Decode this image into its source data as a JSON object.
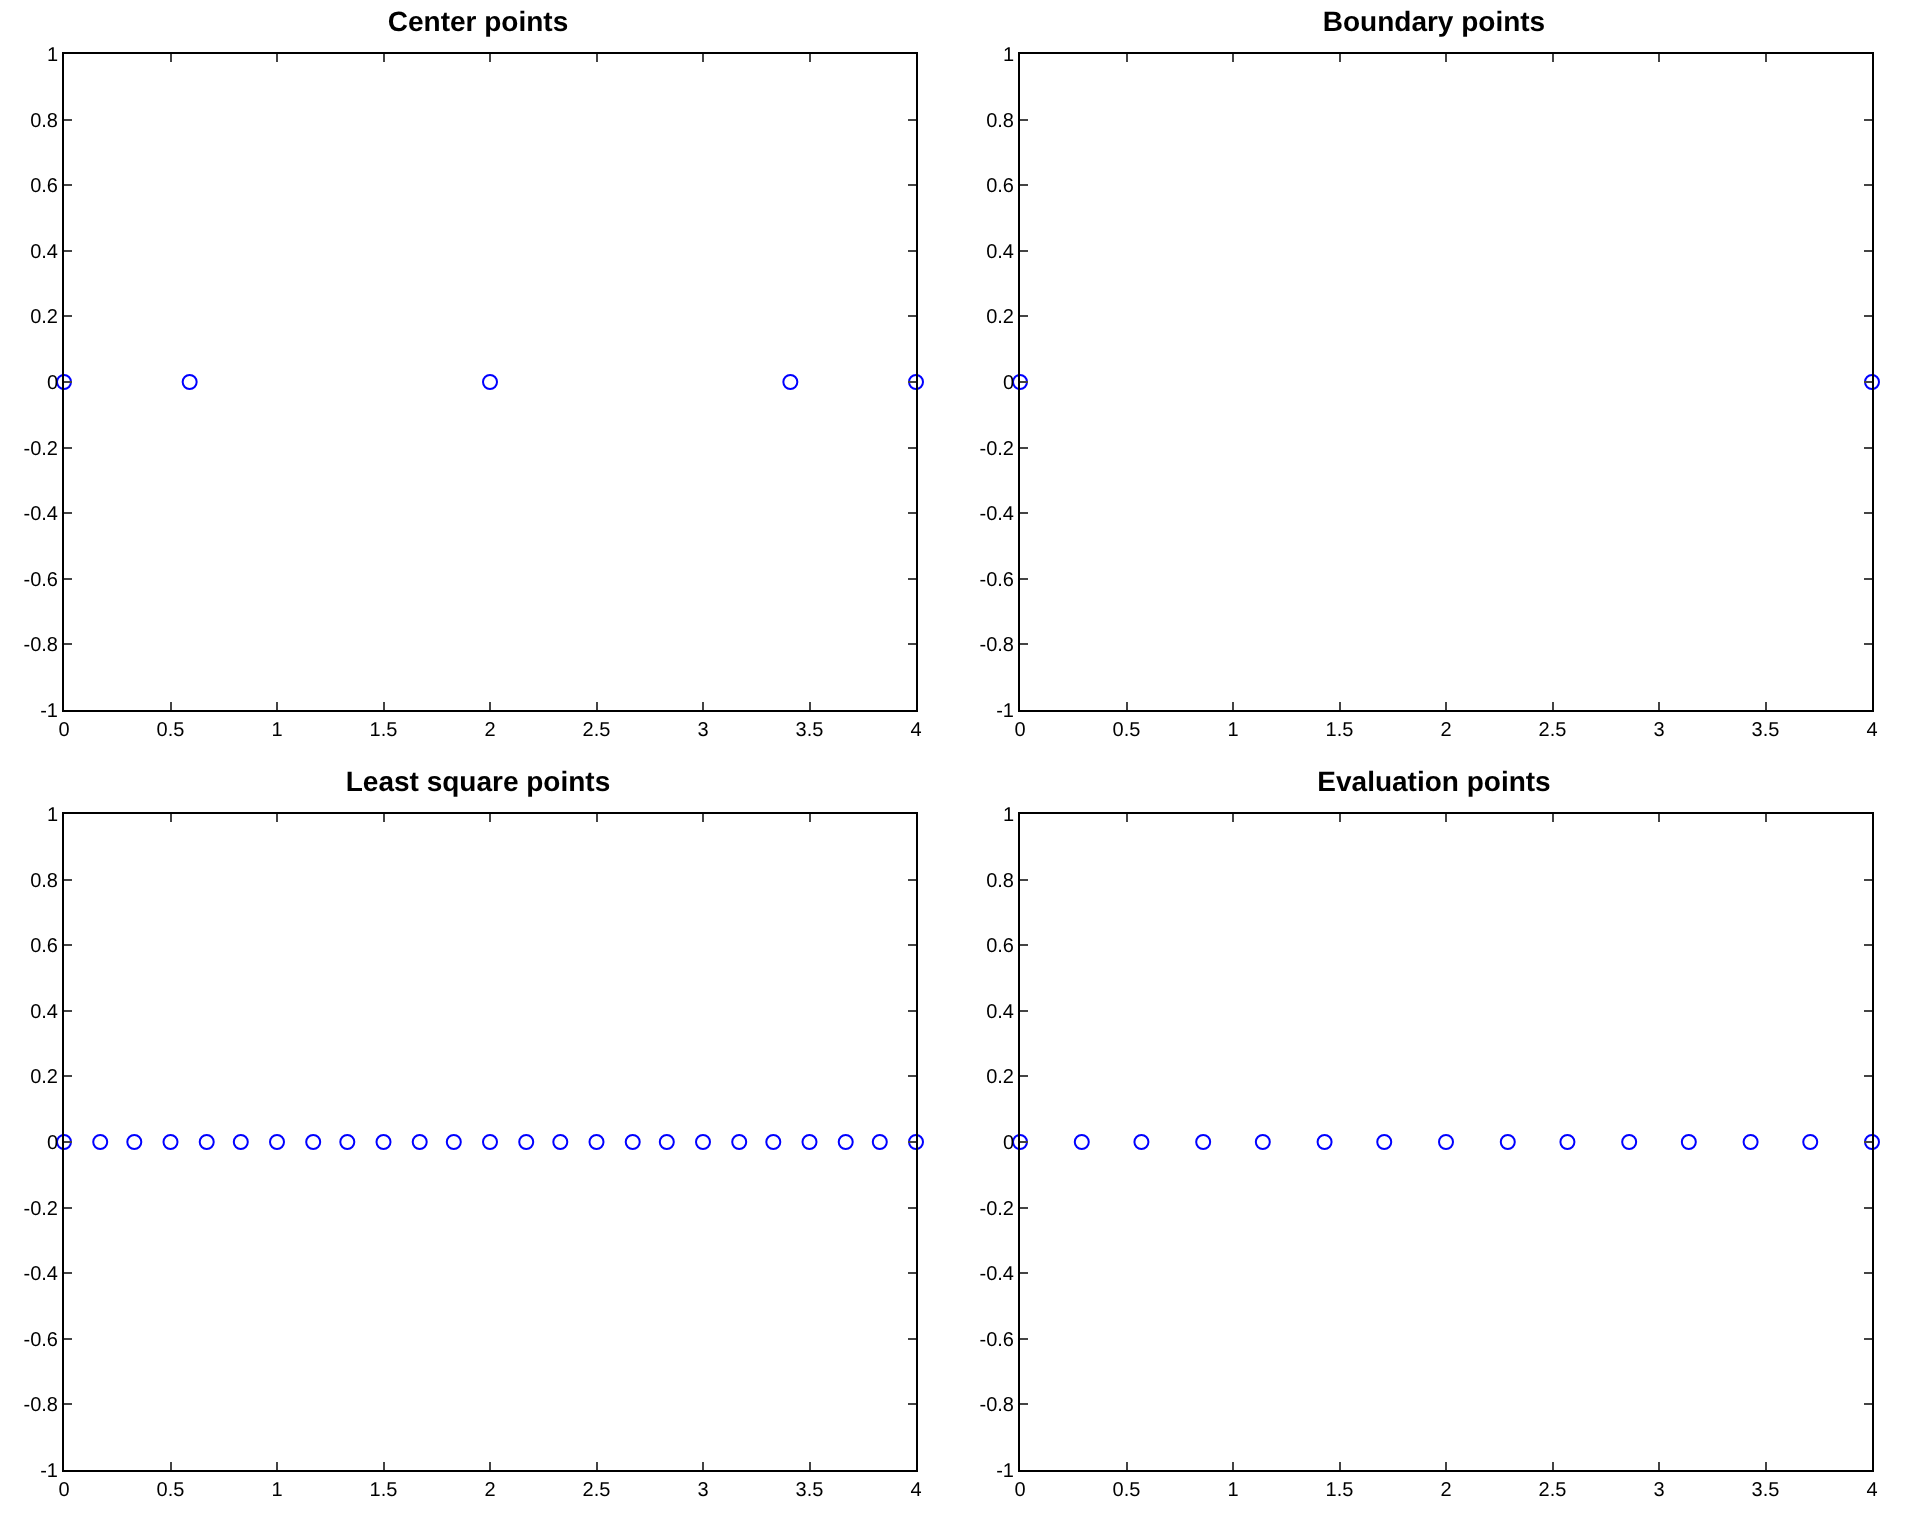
{
  "chart_data": [
    {
      "type": "scatter",
      "title": "Center points",
      "x": [
        0,
        0.59,
        2,
        3.41,
        4
      ],
      "values": [
        0,
        0,
        0,
        0,
        0
      ],
      "color": "#0000ff",
      "marker": "circle",
      "xlim": [
        0,
        4
      ],
      "ylim": [
        -1,
        1
      ],
      "xticks": [
        0,
        0.5,
        1,
        1.5,
        2,
        2.5,
        3,
        3.5,
        4
      ],
      "yticks": [
        -1,
        -0.8,
        -0.6,
        -0.4,
        -0.2,
        0,
        0.2,
        0.4,
        0.6,
        0.8,
        1
      ]
    },
    {
      "type": "scatter",
      "title": "Boundary points",
      "x": [
        0,
        4
      ],
      "values": [
        0,
        0
      ],
      "color": "#0000ff",
      "marker": "circle",
      "xlim": [
        0,
        4
      ],
      "ylim": [
        -1,
        1
      ],
      "xticks": [
        0,
        0.5,
        1,
        1.5,
        2,
        2.5,
        3,
        3.5,
        4
      ],
      "yticks": [
        -1,
        -0.8,
        -0.6,
        -0.4,
        -0.2,
        0,
        0.2,
        0.4,
        0.6,
        0.8,
        1
      ]
    },
    {
      "type": "scatter",
      "title": "Least square points",
      "x": [
        0,
        0.17,
        0.33,
        0.5,
        0.67,
        0.83,
        1,
        1.17,
        1.33,
        1.5,
        1.67,
        1.83,
        2,
        2.17,
        2.33,
        2.5,
        2.67,
        2.83,
        3,
        3.17,
        3.33,
        3.5,
        3.67,
        3.83,
        4
      ],
      "values": [
        0,
        0,
        0,
        0,
        0,
        0,
        0,
        0,
        0,
        0,
        0,
        0,
        0,
        0,
        0,
        0,
        0,
        0,
        0,
        0,
        0,
        0,
        0,
        0,
        0
      ],
      "color": "#0000ff",
      "marker": "circle",
      "xlim": [
        0,
        4
      ],
      "ylim": [
        -1,
        1
      ],
      "xticks": [
        0,
        0.5,
        1,
        1.5,
        2,
        2.5,
        3,
        3.5,
        4
      ],
      "yticks": [
        -1,
        -0.8,
        -0.6,
        -0.4,
        -0.2,
        0,
        0.2,
        0.4,
        0.6,
        0.8,
        1
      ]
    },
    {
      "type": "scatter",
      "title": "Evaluation points",
      "x": [
        0,
        0.29,
        0.57,
        0.86,
        1.14,
        1.43,
        1.71,
        2,
        2.29,
        2.57,
        2.86,
        3.14,
        3.43,
        3.71,
        4
      ],
      "values": [
        0,
        0,
        0,
        0,
        0,
        0,
        0,
        0,
        0,
        0,
        0,
        0,
        0,
        0,
        0
      ],
      "color": "#0000ff",
      "marker": "circle",
      "xlim": [
        0,
        4
      ],
      "ylim": [
        -1,
        1
      ],
      "xticks": [
        0,
        0.5,
        1,
        1.5,
        2,
        2.5,
        3,
        3.5,
        4
      ],
      "yticks": [
        -1,
        -0.8,
        -0.6,
        -0.4,
        -0.2,
        0,
        0.2,
        0.4,
        0.6,
        0.8,
        1
      ]
    }
  ]
}
